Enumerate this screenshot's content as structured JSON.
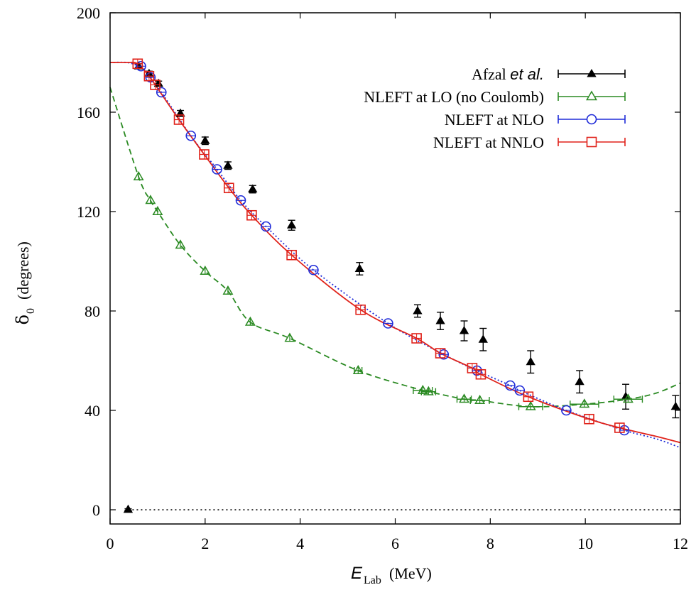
{
  "chart_data": {
    "type": "scatter",
    "title": "",
    "xlabel": "E_Lab",
    "xlabel_unit": "(MeV)",
    "ylabel": "δ_0",
    "ylabel_unit": "(degrees)",
    "xlim": [
      0,
      12
    ],
    "ylim": [
      -5,
      200
    ],
    "xticks": [
      0,
      2,
      4,
      6,
      8,
      10,
      12
    ],
    "yticks": [
      0,
      40,
      80,
      120,
      160,
      200
    ],
    "grid": false,
    "legend_position": "top-right",
    "legend": [
      {
        "label": "Afzal",
        "label_italic": "et al.",
        "color": "#000000",
        "marker": "filled-triangle"
      },
      {
        "label": "NLEFT at LO (no Coulomb)",
        "color": "#2a8a22",
        "marker": "open-triangle"
      },
      {
        "label": "NLEFT at NLO",
        "color": "#1f2bd8",
        "marker": "open-circle"
      },
      {
        "label": "NLEFT at NNLO",
        "color": "#e0221a",
        "marker": "open-square"
      }
    ],
    "series": [
      {
        "name": "Afzal et al.",
        "color": "#000000",
        "points": [
          {
            "x": 0.38,
            "y": 0.1,
            "err": 0.3
          },
          {
            "x": 0.6,
            "y": 178.5,
            "err": 1
          },
          {
            "x": 0.82,
            "y": 175.5,
            "err": 1
          },
          {
            "x": 1.02,
            "y": 171.5,
            "err": 1
          },
          {
            "x": 1.48,
            "y": 159.5,
            "err": 1.2
          },
          {
            "x": 2.0,
            "y": 148.5,
            "err": 1.5
          },
          {
            "x": 2.48,
            "y": 138.5,
            "err": 1.5
          },
          {
            "x": 3.0,
            "y": 129,
            "err": 1.5
          },
          {
            "x": 3.82,
            "y": 114.5,
            "err": 2
          },
          {
            "x": 5.25,
            "y": 97,
            "err": 2.5
          },
          {
            "x": 6.47,
            "y": 80,
            "err": 2.5
          },
          {
            "x": 6.95,
            "y": 76,
            "err": 3.5
          },
          {
            "x": 7.45,
            "y": 72,
            "err": 4
          },
          {
            "x": 7.85,
            "y": 68.5,
            "err": 4.5
          },
          {
            "x": 8.85,
            "y": 59.5,
            "err": 4.5
          },
          {
            "x": 9.88,
            "y": 51.5,
            "err": 4.5
          },
          {
            "x": 10.85,
            "y": 45.5,
            "err": 5
          },
          {
            "x": 11.9,
            "y": 41.5,
            "err": 4.5
          }
        ]
      },
      {
        "name": "NLEFT at LO (no Coulomb)",
        "color": "#2a8a22",
        "points": [
          {
            "x": 0.6,
            "y": 134
          },
          {
            "x": 0.85,
            "y": 124.5
          },
          {
            "x": 1.0,
            "y": 120
          },
          {
            "x": 1.48,
            "y": 106.5
          },
          {
            "x": 2.0,
            "y": 96
          },
          {
            "x": 2.48,
            "y": 88
          },
          {
            "x": 2.95,
            "y": 75.5
          },
          {
            "x": 3.78,
            "y": 69
          },
          {
            "x": 5.22,
            "y": 56
          },
          {
            "x": 6.58,
            "y": 48
          },
          {
            "x": 6.7,
            "y": 47.5
          },
          {
            "x": 7.45,
            "y": 44.5
          },
          {
            "x": 7.78,
            "y": 44
          },
          {
            "x": 8.85,
            "y": 41.5
          },
          {
            "x": 9.98,
            "y": 42.5
          },
          {
            "x": 10.9,
            "y": 44.5
          }
        ],
        "xerr": [
          0.05,
          0.05,
          0.05,
          0.05,
          0.05,
          0.05,
          0.05,
          0.05,
          0.08,
          0.2,
          0.15,
          0.15,
          0.2,
          0.25,
          0.3,
          0.3
        ]
      },
      {
        "name": "NLEFT at NLO",
        "color": "#1f2bd8",
        "points": [
          {
            "x": 0.65,
            "y": 178.5
          },
          {
            "x": 0.85,
            "y": 174
          },
          {
            "x": 1.08,
            "y": 168
          },
          {
            "x": 1.7,
            "y": 150.5
          },
          {
            "x": 2.25,
            "y": 137
          },
          {
            "x": 2.75,
            "y": 124.5
          },
          {
            "x": 3.28,
            "y": 114
          },
          {
            "x": 4.28,
            "y": 96.5
          },
          {
            "x": 5.85,
            "y": 75
          },
          {
            "x": 7.02,
            "y": 62.5
          },
          {
            "x": 7.72,
            "y": 56
          },
          {
            "x": 8.42,
            "y": 50
          },
          {
            "x": 8.62,
            "y": 48
          },
          {
            "x": 9.6,
            "y": 40
          },
          {
            "x": 10.82,
            "y": 32
          }
        ]
      },
      {
        "name": "NLEFT at NNLO",
        "color": "#e0221a",
        "points": [
          {
            "x": 0.58,
            "y": 179.5
          },
          {
            "x": 0.82,
            "y": 174.5
          },
          {
            "x": 0.95,
            "y": 171
          },
          {
            "x": 1.45,
            "y": 157
          },
          {
            "x": 1.98,
            "y": 143
          },
          {
            "x": 2.5,
            "y": 129.5
          },
          {
            "x": 2.98,
            "y": 118.5
          },
          {
            "x": 3.82,
            "y": 102.5
          },
          {
            "x": 5.27,
            "y": 80.5
          },
          {
            "x": 6.45,
            "y": 69
          },
          {
            "x": 6.95,
            "y": 63
          },
          {
            "x": 7.62,
            "y": 57
          },
          {
            "x": 7.8,
            "y": 54.5
          },
          {
            "x": 8.8,
            "y": 45.5
          },
          {
            "x": 10.08,
            "y": 36.5
          },
          {
            "x": 10.72,
            "y": 33
          }
        ]
      }
    ],
    "curves": [
      {
        "series": "NLEFT at LO (no Coulomb)",
        "style": "dashed",
        "color": "#2a8a22"
      },
      {
        "series": "NLEFT at NLO",
        "style": "dotted",
        "color": "#1f2bd8"
      },
      {
        "series": "NLEFT at NNLO",
        "style": "solid",
        "color": "#e0221a"
      },
      {
        "series": "zero",
        "style": "dotted",
        "color": "#000000",
        "y": 0
      }
    ]
  }
}
